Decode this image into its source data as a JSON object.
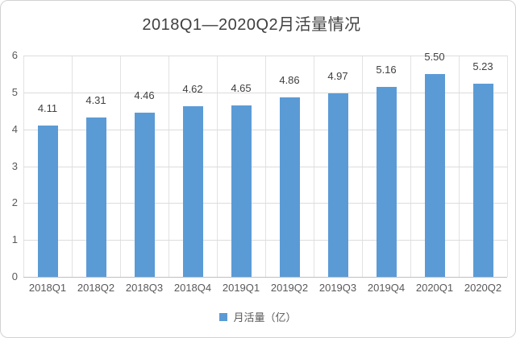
{
  "chart_data": {
    "type": "bar",
    "title": "2018Q1—2020Q2月活量情况",
    "categories": [
      "2018Q1",
      "2018Q2",
      "2018Q3",
      "2018Q4",
      "2019Q1",
      "2019Q2",
      "2019Q3",
      "2019Q4",
      "2020Q1",
      "2020Q2"
    ],
    "values": [
      4.11,
      4.31,
      4.46,
      4.62,
      4.65,
      4.86,
      4.97,
      5.16,
      5.5,
      5.23
    ],
    "value_labels": [
      "4.11",
      "4.31",
      "4.46",
      "4.62",
      "4.65",
      "4.86",
      "4.97",
      "5.16",
      "5.50",
      "5.23"
    ],
    "legend_label": "月活量（亿）",
    "legend_position": "bottom-center",
    "xlabel": "",
    "ylabel": "",
    "ylim": [
      0,
      6
    ],
    "yticks": [
      0,
      1,
      2,
      3,
      4,
      5,
      6
    ],
    "grid": "horizontal and vertical major gridlines",
    "colors": {
      "bar": "#5b9bd5",
      "gridline": "#dcdcdc",
      "axis_line": "#bfbfbf",
      "title_text": "#404040",
      "tick_text": "#595959",
      "data_label_text": "#404040"
    }
  }
}
